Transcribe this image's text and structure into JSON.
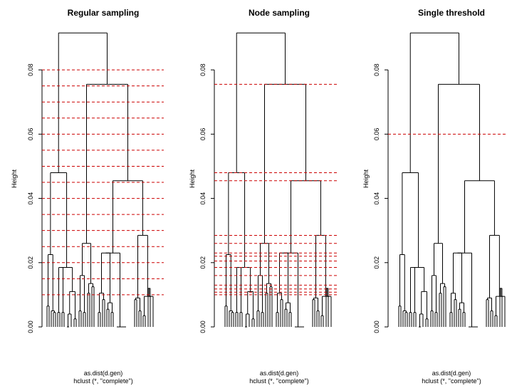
{
  "chart_data": [
    {
      "type": "dendrogram",
      "title": "Regular sampling",
      "ylabel": "Height",
      "subtitle_lines": [
        "as.dist(d.gen)",
        "hclust (*, \"complete\")"
      ],
      "ylim": [
        0,
        0.092
      ],
      "y_ticks": [
        0.0,
        0.02,
        0.04,
        0.06,
        0.08
      ],
      "y_tick_labels": [
        "0.00",
        "0.02",
        "0.04",
        "0.06",
        "0.08"
      ],
      "threshold_color": "#cc0000",
      "thresholds": [
        0.01,
        0.015,
        0.02,
        0.025,
        0.03,
        0.035,
        0.04,
        0.045,
        0.05,
        0.055,
        0.06,
        0.065,
        0.07,
        0.075,
        0.08
      ]
    },
    {
      "type": "dendrogram",
      "title": "Node sampling",
      "ylabel": "Height",
      "subtitle_lines": [
        "as.dist(d.gen)",
        "hclust (*, \"complete\")"
      ],
      "ylim": [
        0,
        0.092
      ],
      "y_ticks": [
        0.0,
        0.02,
        0.04,
        0.06,
        0.08
      ],
      "y_tick_labels": [
        "0.00",
        "0.02",
        "0.04",
        "0.06",
        "0.08"
      ],
      "threshold_color": "#cc0000",
      "thresholds": [
        0.0755,
        0.048,
        0.0455,
        0.0285,
        0.026,
        0.023,
        0.022,
        0.0205,
        0.0185,
        0.016,
        0.013,
        0.0118,
        0.0108,
        0.01
      ]
    },
    {
      "type": "dendrogram",
      "title": "Single threshold",
      "ylabel": "Height",
      "subtitle_lines": [
        "as.dist(d.gen)",
        "hclust (*, \"complete\")"
      ],
      "ylim": [
        0,
        0.092
      ],
      "y_ticks": [
        0.0,
        0.02,
        0.04,
        0.06,
        0.08
      ],
      "y_tick_labels": [
        "0.00",
        "0.02",
        "0.04",
        "0.06",
        "0.08"
      ],
      "threshold_color": "#cc0000",
      "thresholds": [
        0.06
      ]
    }
  ]
}
